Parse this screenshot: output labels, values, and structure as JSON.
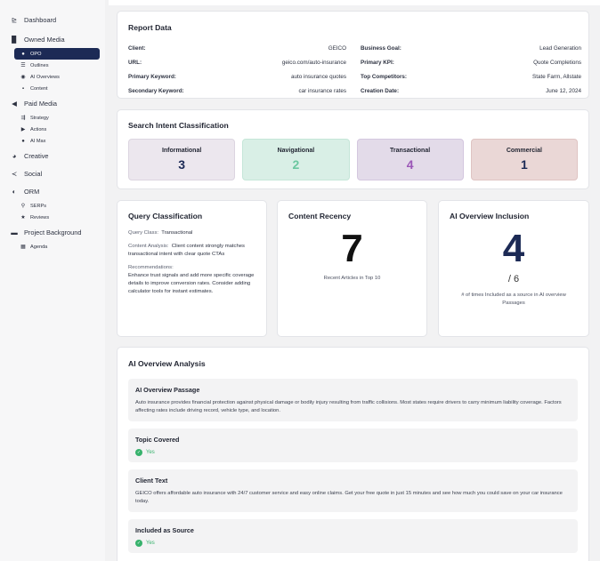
{
  "sidebar": {
    "dashboard": "Dashboard",
    "owned_media": "Owned Media",
    "owned_items": [
      "OPO",
      "Outlines",
      "AI Overviews",
      "Content"
    ],
    "paid_media": "Paid Media",
    "paid_items": [
      "Strategy",
      "Actions",
      "AI Max"
    ],
    "creative": "Creative",
    "social": "Social",
    "orm": "ORM",
    "orm_items": [
      "SERPs",
      "Reviews"
    ],
    "project_background": "Project Background",
    "project_items": [
      "Agenda"
    ]
  },
  "report": {
    "title": "Report Data",
    "left": [
      {
        "k": "Client:",
        "v": "GEICO"
      },
      {
        "k": "URL:",
        "v": "geico.com/auto-insurance"
      },
      {
        "k": "Primary Keyword:",
        "v": "auto insurance quotes"
      },
      {
        "k": "Secondary Keyword:",
        "v": "car insurance rates"
      }
    ],
    "right": [
      {
        "k": "Business Goal:",
        "v": "Lead Generation"
      },
      {
        "k": "Primary KPI:",
        "v": "Quote Completions"
      },
      {
        "k": "Top Competitors:",
        "v": "State Farm, Allstate"
      },
      {
        "k": "Creation Date:",
        "v": "June 12, 2024"
      }
    ]
  },
  "intent": {
    "title": "Search Intent Classification",
    "boxes": [
      {
        "label": "Informational",
        "value": "3",
        "bg": "#ece7ee",
        "border": "#dcd5e0",
        "color": "#1c2a55"
      },
      {
        "label": "Navigational",
        "value": "2",
        "bg": "#d9efe6",
        "border": "#c5e6d8",
        "color": "#6bc7a0"
      },
      {
        "label": "Transactional",
        "value": "4",
        "bg": "#e3dbe9",
        "border": "#d4c7df",
        "color": "#9b57b7"
      },
      {
        "label": "Commercial",
        "value": "1",
        "bg": "#ead7d6",
        "border": "#dfc4c3",
        "color": "#1c2a55"
      }
    ]
  },
  "query": {
    "title": "Query Classification",
    "class_label": "Query Class:",
    "class_value": "Transactional",
    "analysis_label": "Content Analysis:",
    "analysis_value": "Client content strongly matches transactional intent with clear quote CTAs",
    "rec_label": "Recommendations:",
    "rec_value": "Enhance trust signals and add more specific coverage details to improve conversion rates. Consider adding calculator tools for instant estimates."
  },
  "recency": {
    "title": "Content Recency",
    "value": "7",
    "caption": "Recent Articles in Top 10"
  },
  "inclusion": {
    "title": "AI Overview Inclusion",
    "value": "4",
    "total": "/ 6",
    "caption": "# of times Included as a source in AI overview Passages"
  },
  "analysis": {
    "title": "AI Overview Analysis",
    "passage_title": "AI Overview Passage",
    "passage_text": "Auto insurance provides financial protection against physical damage or bodily injury resulting from traffic collisions. Most states require drivers to carry minimum liability coverage. Factors affecting rates include driving record, vehicle type, and location.",
    "topic_title": "Topic Covered",
    "topic_value": "Yes",
    "client_title": "Client Text",
    "client_text": "GEICO offers affordable auto insurance with 24/7 customer service and easy online claims. Get your free quote in just 15 minutes and see how much you could save on your car insurance today.",
    "source_title": "Included as Source",
    "source_value": "Yes"
  }
}
